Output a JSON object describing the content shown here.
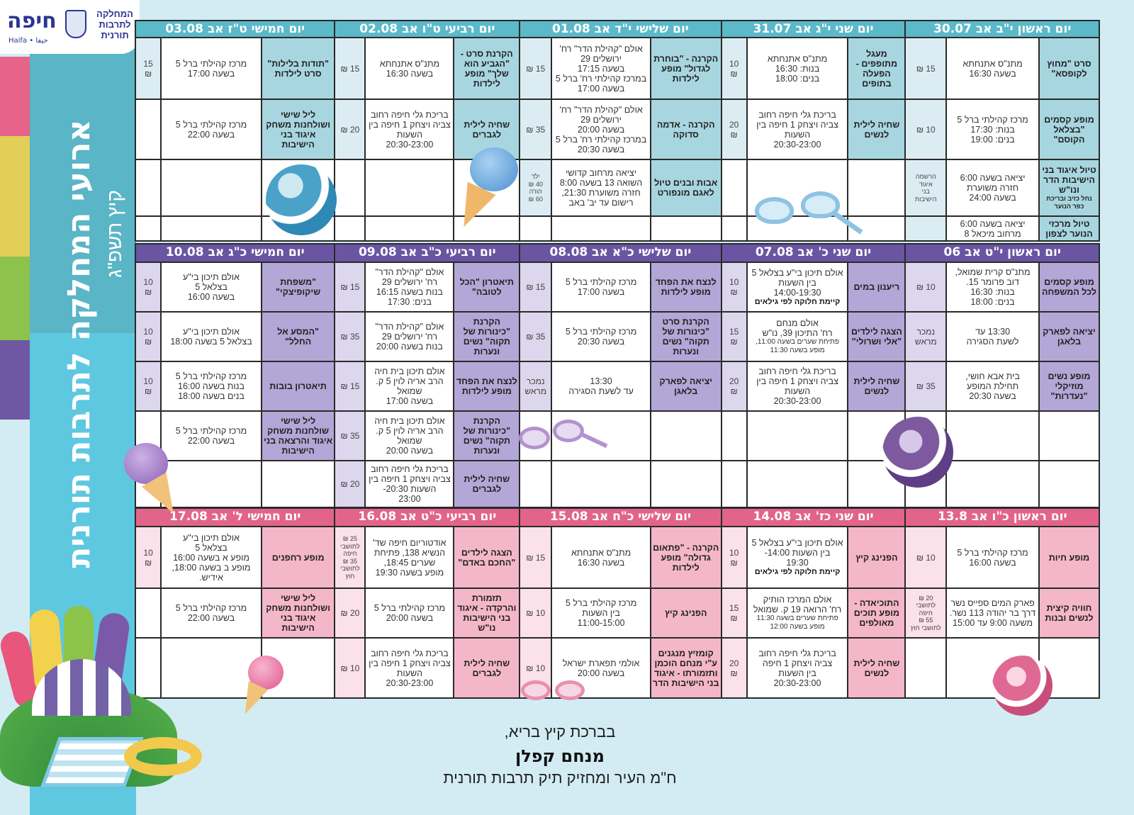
{
  "logo": {
    "city": "חיפה",
    "city_sub": "Haifa • حيفا",
    "department": "המחלקה לתרבות תורנית"
  },
  "title": "ארועי המחלקה לתרבות תורנית",
  "subtitle": "קיץ תשפ\"ג",
  "sidebar_stripes": [
    "#e8638a",
    "#e2cf57",
    "#8dc24c",
    "#6e58a4"
  ],
  "weeks": [
    {
      "colors": {
        "header": "#5bb9c9",
        "name": "#a8d6e0",
        "price": "#dbedf3"
      },
      "days": [
        {
          "header": "יום ראשון י\"ב אב 30.07",
          "rows": [
            {
              "name": "סרט \"מחוץ לקופסא\"",
              "details": "מתנ\"ס אתנחתא\nבשעה 16:30",
              "price": "15 ₪"
            },
            {
              "name": "מופע קסמים \"בצלאל הקוסם\"",
              "details": "מרכז קהילתי ברל 5\nבנות: 17:30\nבנים: 19:00",
              "price": "10 ₪"
            },
            {
              "name": "טיול איגוד בני הישיבות הדר ונו\"ש",
              "name_small": "נחל כזיב ובריכת כפר הנוער",
              "details": "יציאה בשעה 6:00\nחזרה משוערת\nבשעה 24:00",
              "price": "הרשמה\nאיגוד\nבני\nהישיבות"
            },
            {
              "name": "טיול מרכזי הנוער לצפון",
              "details": "יציאה בשעה 6:00\nמרחוב מיכאל 8",
              "price": ""
            }
          ]
        },
        {
          "header": "יום שני י\"ג אב 31.07",
          "rows": [
            {
              "name": "מעגל מתופפים - הפעלה בתופים",
              "details": "מתנ\"ס אתנחתא\nבנות: 16:30\nבנים: 18:00",
              "price": "10\n₪"
            },
            {
              "name": "שחיה לילית לנשים",
              "details": "בריכת גלי חיפה רחוב צביה ויצחק 1 חיפה  בין השעות\n20:30-23:00",
              "price": "20\n₪"
            },
            {},
            {}
          ]
        },
        {
          "header": "יום שלישי י\"ד אב 01.08",
          "rows": [
            {
              "name": "הקרנה - \"בוחרת לגדול\" מופע לילדות",
              "details": "אולם \"קהילת הדר\" רח' ירושלים 29\nבשעה 17:15\nבמרכז קהילתי רח' ברל 5 בשעה 17:00",
              "price": "15 ₪"
            },
            {
              "name": "הקרנה - אדמה סדוקה",
              "details": "אולם \"קהילת הדר\" רח' ירושלים 29\nבשעה 20:00\nבמרכז קהילתי רח' ברל 5 בשעה 20:30",
              "price": "35 ₪"
            },
            {
              "name": "אבות ובנים טיול לאגם מונפורט",
              "details": "יציאה מרחוב קדושי השואה 13 בשעה 8:00 חזרה משוערת 21:30, רישום עד יב' באב",
              "price": "ילד\n40 ₪\nהורה\n60 ₪"
            },
            {}
          ]
        },
        {
          "header": "יום רביעי ט\"ו אב 02.08",
          "rows": [
            {
              "name": "הקרנת סרט - \"הגביע הוא שלך\" מופע לילדות",
              "details": "מתנ\"ס אתנחתא\nבשעה 16:30",
              "price": "15 ₪"
            },
            {
              "name": "שחיה לילית לגברים",
              "details": "בריכת גלי חיפה רחוב צביה ויצחק 1 חיפה  בין השעות\n20:30-23:00",
              "price": "20 ₪"
            },
            {},
            {}
          ]
        },
        {
          "header": "יום חמישי ט\"ז אב 03.08",
          "rows": [
            {
              "name": "\"תודות בלילות\" סרט לילדות",
              "details": "מרכז קהילתי ברל 5\nבשעה 17:00",
              "price": "15\n₪"
            },
            {
              "name": "ליל שישי ושולחנות משחק איגוד בני הישיבות",
              "details": "מרכז קהילתי ברל 5\nבשעה 22:00",
              "price": ""
            },
            {},
            {}
          ]
        }
      ]
    },
    {
      "colors": {
        "header": "#6a55a2",
        "name": "#b2a7d6",
        "price": "#dcd7ec"
      },
      "days": [
        {
          "header": "יום ראשון י\"ט אב 06",
          "rows": [
            {
              "name": "מופע קסמים לכל המשפחה",
              "details": "מתנ\"ס קרית שמואל, דוב פרומר 15.\nבנות: 16:30\nבנים: 18:00",
              "price": "10 ₪"
            },
            {
              "name": "יציאה לפארק בלאגן",
              "details": "13:30 עד\nלשעת הסגירה",
              "price": "נמכר\nמראש"
            },
            {
              "name": "מופע נשים מוזיקלי \"נעדרות\"",
              "details": "בית אבא חושי,\nתחילת המופע\nבשעה 20:30",
              "price": "35 ₪"
            },
            {},
            {}
          ]
        },
        {
          "header": "יום שני כ' אב 07.08",
          "rows": [
            {
              "name": "ריענון במים",
              "details": "אולם תיכון בי\"ע בצלאל 5\nבין השעות\n14:00-19:30",
              "note": "קיימת חלוקה לפי גילאים",
              "price": "10\n₪"
            },
            {
              "name": "הצגה לילדים \"אלי ושרולי\"",
              "details": "אולם מנחם\nרח' התיכון 39, נו\"ש",
              "small": "פתיחת שערים בשעה 11:00,\nמופע בשעה 11:30",
              "price": "15\n₪"
            },
            {
              "name": "שחיה לילית לנשים",
              "details": "בריכת גלי חיפה רחוב צביה ויצחק 1 חיפה  בין השעות\n20:30-23:00",
              "price": "20\n₪"
            },
            {},
            {}
          ]
        },
        {
          "header": "יום שלישי כ\"א אב 08.08",
          "rows": [
            {
              "name": "לנצח את הפחד מופע לילדות",
              "details": "מרכז קהילתי ברל 5\nבשעה 17:00",
              "price": "15 ₪"
            },
            {
              "name": "הקרנת סרט \"כינורות של תקוה\" נשים ונערות",
              "details": "מרכז קהילתי ברל 5\nבשעה 20:30",
              "price": "35 ₪"
            },
            {
              "name": "יציאה לפארק בלאגן",
              "details": "13:30\nעד לשעת הסגירה",
              "price": "נמכר\nמראש"
            },
            {},
            {}
          ]
        },
        {
          "header": "יום רביעי כ\"ב אב 09.08",
          "rows": [
            {
              "name": "תיאטרון \"הכל לטובה\"",
              "details": "אולם \"קהילת הדר\"\nרח' ירושלים 29\nבנות בשעה 16:15\nבנים: 17:30",
              "price": "15 ₪"
            },
            {
              "name": "הקרנת \"כינורות של תקוה\" נשים ונערות",
              "details": "אולם \"קהילת הדר\"\nרח' ירושלים 29\nבנות בשעה 20:00",
              "price": "35 ₪"
            },
            {
              "name": "לנצח את הפחד מופע לילדות",
              "details": "אולם תיכון בית חיה הרב אריה לוין 5 ק. שמואל\nבשעה 17:00",
              "price": "15 ₪"
            },
            {
              "name": "הקרנת \"כינורות של תקוה\" נשים ונערות",
              "details": "אולם תיכון בית חיה הרב אריה לוין 5 ק. שמואל\nבשעה 20:00",
              "price": "35 ₪"
            },
            {
              "name": "שחיה לילית לגברים",
              "details": "בריכת גלי חיפה רחוב צביה ויצחק 1 חיפה בין השעות 20:30-\n23:00",
              "price": "20 ₪"
            }
          ]
        },
        {
          "header": "יום חמישי כ\"ג אב 10.08",
          "rows": [
            {
              "name": "\"משפחת שיקופיצקי\"",
              "details": "אולם תיכון בי\"ע\nבצלאל 5\nבשעה 16:00",
              "price": "10\n₪"
            },
            {
              "name": "\"המסע אל החלל\"",
              "details": "אולם תיכון בי\"ע\nבצלאל 5 בשעה 18:00",
              "price": "10\n₪"
            },
            {
              "name": "תיאטרון בובות",
              "details": "מרכז קהילתי ברל 5\nבנות בשעה 16:00\nבנים בשעה 18:00",
              "price": "10\n₪"
            },
            {
              "name": "ליל שישי שולחנות משחק איגוד והרצאה בני הישיבות",
              "details": "מרכז קהילתי ברל 5\nבשעה 22:00",
              "price": ""
            },
            {}
          ]
        }
      ]
    },
    {
      "colors": {
        "header": "#e2648b",
        "name": "#f4b7c9",
        "price": "#fbe1e9"
      },
      "days": [
        {
          "header": "יום ראשון כ\"ו אב 13.8",
          "rows": [
            {
              "name": "מופע חיות",
              "details": "מרכז קהילתי ברל 5\nבשעה 16:00",
              "price": "10 ₪"
            },
            {
              "name": "חוויה קיצית לנשים ובנות",
              "details": "פארק המים ספייס נשר דרך בר יהודה 113 נשר. משעה 9:00 עד 15:00",
              "price": "20 ₪\nלתושבי\nחיפה\n55 ₪\nלתושבי חוץ"
            },
            {}
          ]
        },
        {
          "header": "יום שני כז' אב 14.08",
          "rows": [
            {
              "name": "הפנינג קיץ",
              "details": "אולם תיכון בי\"ע בצלאל 5 בין השעות 14:00-\n19:30",
              "note": "קיימת חלוקה לפי גילאים",
              "price": "10\n₪"
            },
            {
              "name": "התוכיאדה - מופע תוכים מאולפים",
              "details": "אולם המרכז הותיק\nרח' הרואה 19 ק. שמואל",
              "small": "פתיחת שערים בשעה 11:30\nמופע בשעה 12:00",
              "price": "15\n₪"
            },
            {
              "name": "שחיה לילית לנשים",
              "details": "בריכת גלי חיפה רחוב צביה ויצחק 1 חיפה\nבין השעות\n20:30-23:00",
              "price": "20\n₪"
            }
          ]
        },
        {
          "header": "יום שלישי כ\"ח  אב 15.08",
          "rows": [
            {
              "name": "הקרנה - \"פתאום גדולה\" מופע לילדות",
              "details": "מתנ\"ס אתנחתא\nבשעה 16:30",
              "price": "15 ₪"
            },
            {
              "name": "הפנינג קיץ",
              "details": "מרכז קהילתי ברל 5\nבין השעות\n11:00-15:00",
              "price": "10 ₪"
            },
            {
              "name": "קומזיץ מנגנים ע\"י מנחם הוכמן ותזמורתו - איגוד בני הישיבות הדר",
              "details": "אולמי תפארת ישראל\nבשעה 20:00",
              "price": "10 ₪"
            }
          ]
        },
        {
          "header": "יום רביעי כ\"ט אב 16.08",
          "rows": [
            {
              "name": "הצגה לילדים \"החכם באדם\"",
              "details": "אודטוריום חיפה שד' הנשיא 138, פתיחת שערים 18:45,\nמופע בשעה 19:30",
              "price": "25 ₪\nלתושבי\nחיפה\n35 ₪\nלתושבי\nחוץ"
            },
            {
              "name": "תזמורת והרקדה - איגוד בני הישיבות נו\"ש",
              "details": "מרכז קהילתי ברל 5\nבשעה 20:00",
              "price": "20 ₪"
            },
            {
              "name": "שחיה לילית לגברים",
              "details": "בריכת גלי חיפה רחוב צביה ויצחק 1 חיפה  בין השעות\n20:30-23:00",
              "price": "10 ₪"
            }
          ]
        },
        {
          "header": "יום חמישי ל' אב 17.08",
          "rows": [
            {
              "name": "מופע רחפנים",
              "details": "אולם תיכון בי\"ע\nבצלאל 5\nמופע א בשעה 16:00\nמופע ב בשעה 18:00,\nאידיש.",
              "price": "10\n₪"
            },
            {
              "name": "ליל שישי ושולחנות משחק איגוד בני הישיבות",
              "details": "מרכז קהילתי ברל 5\nבשעה 22:00",
              "price": ""
            },
            {}
          ]
        }
      ]
    }
  ],
  "footer": {
    "greeting": "בברכת קיץ בריא,",
    "name": "מנחם קפלן",
    "role": "ח\"מ העיר ומחזיק תיק תרבות תורנית"
  }
}
